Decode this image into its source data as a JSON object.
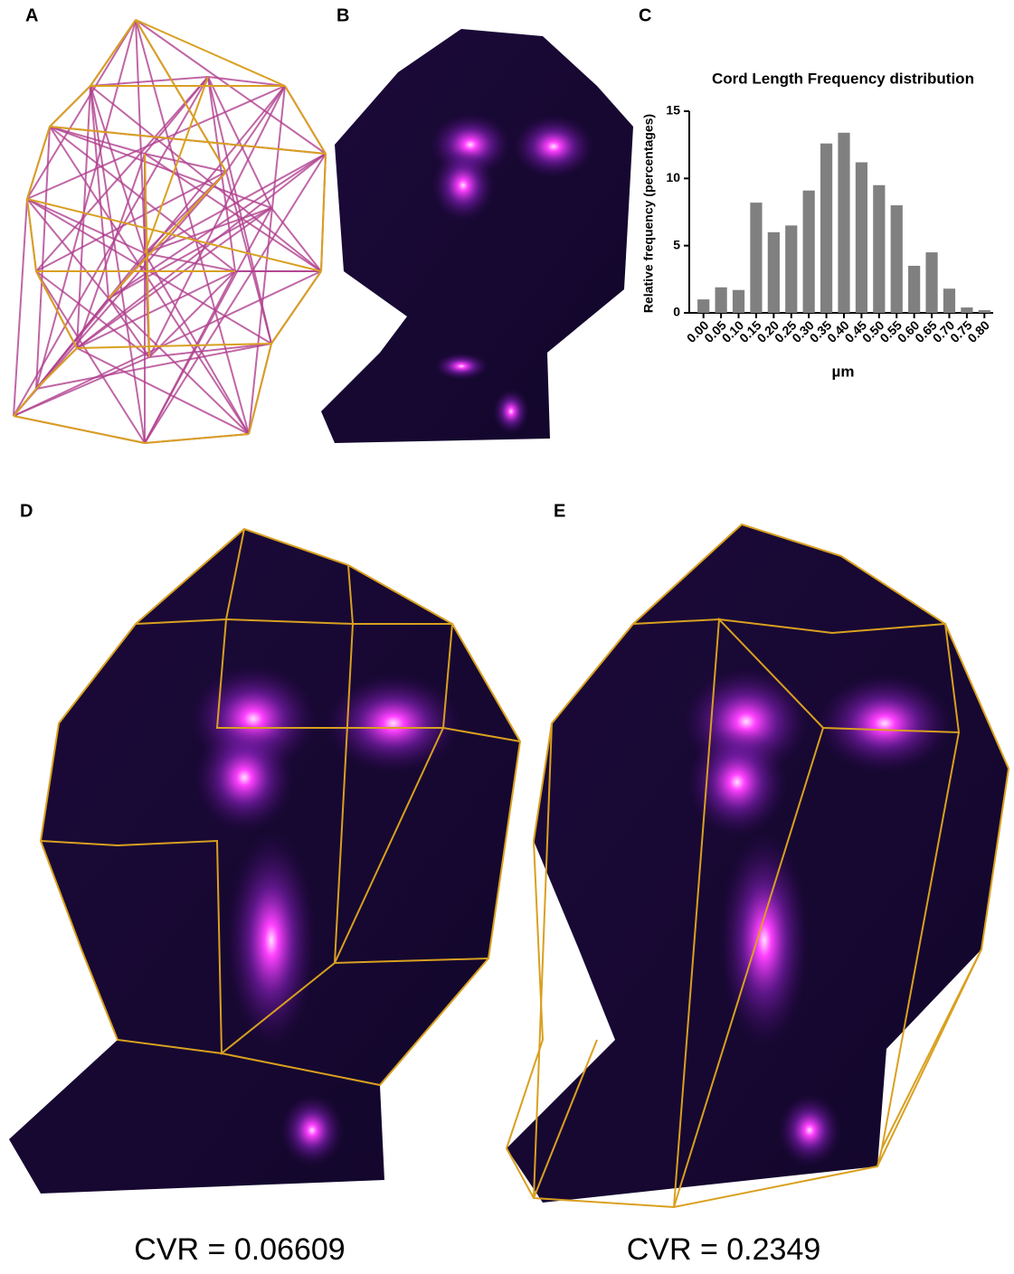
{
  "panels": [
    "A",
    "B",
    "C",
    "D",
    "E"
  ],
  "captions": [
    "CVR = 0.06609",
    "CVR = 0.2349"
  ],
  "chart_data": {
    "type": "bar",
    "title": "Cord Length Frequency distribution",
    "x_label": "µm",
    "y_label": "Relative frequency (percentages)",
    "categories": [
      "0.00",
      "0.05",
      "0.10",
      "0.15",
      "0.20",
      "0.25",
      "0.30",
      "0.35",
      "0.40",
      "0.45",
      "0.50",
      "0.55",
      "0.60",
      "0.65",
      "0.70",
      "0.75",
      "0.80"
    ],
    "values": [
      1.0,
      1.9,
      1.7,
      8.2,
      6.0,
      6.5,
      9.1,
      12.6,
      13.4,
      11.2,
      9.5,
      8.0,
      3.5,
      4.5,
      1.8,
      0.4,
      0.2
    ],
    "color": "#808080",
    "ylim": [
      0,
      15
    ],
    "yticks": [
      0,
      5,
      10,
      15
    ]
  }
}
